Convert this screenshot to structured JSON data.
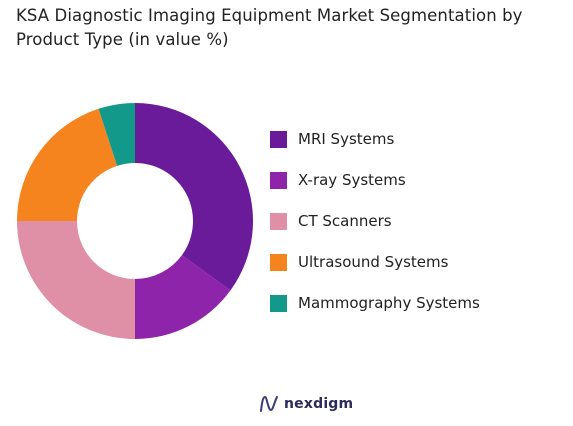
{
  "chart_data": {
    "type": "pie",
    "title_lines": [
      "KSA Diagnostic Imaging Equipment Market Segmentation by",
      "Product Type (in value %)"
    ],
    "categories": [
      "MRI Systems",
      "X-ray Systems",
      "CT Scanners",
      "Ultrasound Systems",
      "Mammography Systems"
    ],
    "values": [
      35,
      15,
      25,
      20,
      5
    ],
    "colors": [
      "#6a1b9a",
      "#8e24aa",
      "#df8fa6",
      "#f5841f",
      "#13998a"
    ],
    "donut": true,
    "legend_position": "right"
  },
  "branding": {
    "logo_text": "nexdigm"
  }
}
